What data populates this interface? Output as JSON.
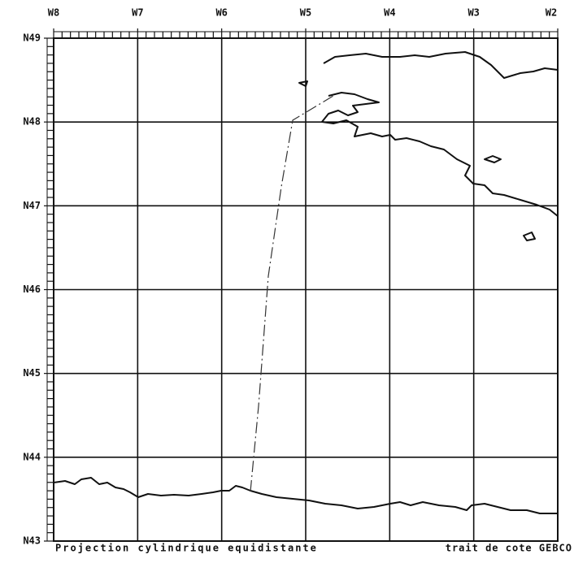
{
  "map": {
    "longitude_labels": [
      "W8",
      "W7",
      "W6",
      "W5",
      "W4",
      "W3",
      "W2"
    ],
    "latitude_labels": [
      "N49",
      "N48",
      "N47",
      "N46",
      "N45",
      "N44",
      "N43"
    ],
    "footer": {
      "projection": "Projection cylindrique equidistante",
      "source": "trait de cote GEBCO"
    }
  }
}
